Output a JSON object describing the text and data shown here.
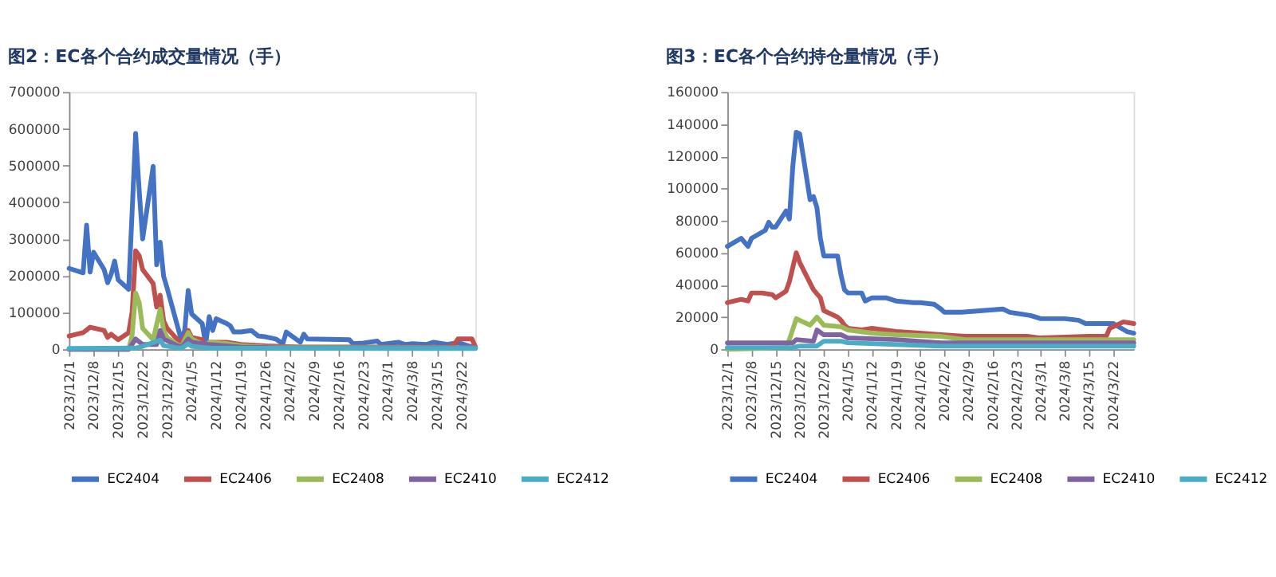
{
  "chart_data": [
    {
      "type": "line",
      "title": "图2：EC各个合约成交量情况（手）",
      "legend": "bottom",
      "grid": false,
      "line_style": "solid",
      "marker": "none",
      "xlim": [
        "2023-12-01",
        "2024-03-26"
      ],
      "xticks": [
        {
          "value": "2023-12-01",
          "label": "2023/12/1"
        },
        {
          "value": "2023-12-08",
          "label": "2023/12/8"
        },
        {
          "value": "2023-12-15",
          "label": "2023/12/15"
        },
        {
          "value": "2023-12-22",
          "label": "2023/12/22"
        },
        {
          "value": "2023-12-29",
          "label": "2023/12/29"
        },
        {
          "value": "2024-01-05",
          "label": "2024/1/5"
        },
        {
          "value": "2024-01-12",
          "label": "2024/1/12"
        },
        {
          "value": "2024-01-19",
          "label": "2024/1/19"
        },
        {
          "value": "2024-01-26",
          "label": "2024/1/26"
        },
        {
          "value": "2024-02-02",
          "label": "2024/2/2"
        },
        {
          "value": "2024-02-09",
          "label": "2024/2/9"
        },
        {
          "value": "2024-02-16",
          "label": "2024/2/16"
        },
        {
          "value": "2024-02-23",
          "label": "2024/2/23"
        },
        {
          "value": "2024-03-01",
          "label": "2024/3/1"
        },
        {
          "value": "2024-03-08",
          "label": "2024/3/8"
        },
        {
          "value": "2024-03-15",
          "label": "2024/3/15"
        },
        {
          "value": "2024-03-22",
          "label": "2024/3/22"
        }
      ],
      "ylim": [
        0,
        700000
      ],
      "yticks": [
        0,
        100000,
        200000,
        300000,
        400000,
        500000,
        600000,
        700000
      ],
      "series": [
        {
          "name": "EC2404",
          "color": "#4472c4",
          "x": [
            "2023-12-01",
            "2023-12-05",
            "2023-12-06",
            "2023-12-07",
            "2023-12-08",
            "2023-12-11",
            "2023-12-12",
            "2023-12-13",
            "2023-12-14",
            "2023-12-15",
            "2023-12-18",
            "2023-12-20",
            "2023-12-21",
            "2023-12-22",
            "2023-12-25",
            "2023-12-26",
            "2023-12-27",
            "2023-12-28",
            "2023-12-29",
            "2024-01-02",
            "2024-01-03",
            "2024-01-04",
            "2024-01-05",
            "2024-01-08",
            "2024-01-09",
            "2024-01-10",
            "2024-01-11",
            "2024-01-12",
            "2024-01-15",
            "2024-01-16",
            "2024-01-17",
            "2024-01-19",
            "2024-01-22",
            "2024-01-24",
            "2024-01-26",
            "2024-01-29",
            "2024-01-31",
            "2024-02-01",
            "2024-02-05",
            "2024-02-06",
            "2024-02-07",
            "2024-02-19",
            "2024-02-20",
            "2024-02-23",
            "2024-02-27",
            "2024-02-28",
            "2024-03-04",
            "2024-03-06",
            "2024-03-08",
            "2024-03-12",
            "2024-03-14",
            "2024-03-18",
            "2024-03-21",
            "2024-03-25"
          ],
          "values": [
            220000,
            208000,
            338000,
            210000,
            264000,
            217000,
            181000,
            204000,
            240000,
            189000,
            163000,
            587000,
            434000,
            300000,
            498000,
            230000,
            291000,
            198000,
            166000,
            26000,
            51000,
            160000,
            96000,
            70000,
            13000,
            89000,
            51000,
            83000,
            70000,
            64000,
            47000,
            47000,
            51000,
            36000,
            34000,
            28000,
            15000,
            47000,
            19000,
            41000,
            28000,
            26000,
            15000,
            17000,
            22000,
            13000,
            19000,
            13000,
            15000,
            13000,
            19000,
            13000,
            18000,
            6000
          ]
        },
        {
          "name": "EC2406",
          "color": "#c0504d",
          "x": [
            "2023-12-01",
            "2023-12-05",
            "2023-12-07",
            "2023-12-11",
            "2023-12-12",
            "2023-12-13",
            "2023-12-15",
            "2023-12-18",
            "2023-12-19",
            "2023-12-20",
            "2023-12-21",
            "2023-12-22",
            "2023-12-25",
            "2023-12-26",
            "2023-12-27",
            "2023-12-28",
            "2023-12-29",
            "2024-01-02",
            "2024-01-04",
            "2024-01-05",
            "2024-01-08",
            "2024-01-09",
            "2024-01-10",
            "2024-01-15",
            "2024-01-19",
            "2024-01-26",
            "2024-02-05",
            "2024-02-23",
            "2024-03-18",
            "2024-03-20",
            "2024-03-21",
            "2024-03-25",
            "2024-03-26"
          ],
          "values": [
            36000,
            45000,
            60000,
            51000,
            32000,
            41000,
            26000,
            45000,
            102000,
            268000,
            255000,
            217000,
            179000,
            115000,
            147000,
            77000,
            57000,
            15000,
            51000,
            32000,
            26000,
            6000,
            19000,
            19000,
            13000,
            9000,
            6000,
            6000,
            6000,
            13000,
            28000,
            28000,
            6000
          ]
        },
        {
          "name": "EC2408",
          "color": "#9bbb59",
          "x": [
            "2023-12-01",
            "2023-12-18",
            "2023-12-19",
            "2023-12-20",
            "2023-12-21",
            "2023-12-22",
            "2023-12-25",
            "2023-12-27",
            "2023-12-28",
            "2023-12-29",
            "2024-01-02",
            "2024-01-04",
            "2024-01-05",
            "2024-01-09",
            "2024-01-10",
            "2024-01-15",
            "2024-01-19",
            "2024-01-26",
            "2024-03-26"
          ],
          "values": [
            0,
            0,
            38000,
            153000,
            128000,
            57000,
            26000,
            109000,
            51000,
            32000,
            6000,
            45000,
            28000,
            10000,
            19000,
            15000,
            10000,
            6000,
            4000
          ]
        },
        {
          "name": "EC2410",
          "color": "#8064a2",
          "x": [
            "2023-12-01",
            "2023-12-18",
            "2023-12-20",
            "2023-12-22",
            "2023-12-26",
            "2023-12-27",
            "2023-12-28",
            "2024-01-02",
            "2024-01-04",
            "2024-01-05",
            "2024-01-10",
            "2024-01-19",
            "2024-02-01",
            "2024-03-26"
          ],
          "values": [
            0,
            0,
            28000,
            13000,
            13000,
            51000,
            28000,
            5000,
            28000,
            19000,
            13000,
            6000,
            4000,
            4000
          ]
        },
        {
          "name": "EC2412",
          "color": "#4bacc6",
          "x": [
            "2023-12-01",
            "2023-12-20",
            "2023-12-22",
            "2023-12-27",
            "2023-12-28",
            "2024-01-02",
            "2024-01-04",
            "2024-01-05",
            "2024-01-10",
            "2024-03-26"
          ],
          "values": [
            2000,
            3000,
            8000,
            25000,
            10000,
            2000,
            15000,
            8000,
            3000,
            2000
          ]
        }
      ]
    },
    {
      "type": "line",
      "title": "图3：EC各个合约持仓量情况（手）",
      "legend": "bottom",
      "grid": false,
      "line_style": "solid",
      "marker": "none",
      "xlim": [
        "2023-12-01",
        "2024-03-28"
      ],
      "xticks": [
        {
          "value": "2023-12-01",
          "label": "2023/12/1"
        },
        {
          "value": "2023-12-08",
          "label": "2023/12/8"
        },
        {
          "value": "2023-12-15",
          "label": "2023/12/15"
        },
        {
          "value": "2023-12-22",
          "label": "2023/12/22"
        },
        {
          "value": "2023-12-29",
          "label": "2023/12/29"
        },
        {
          "value": "2024-01-05",
          "label": "2024/1/5"
        },
        {
          "value": "2024-01-12",
          "label": "2024/1/12"
        },
        {
          "value": "2024-01-19",
          "label": "2024/1/19"
        },
        {
          "value": "2024-01-26",
          "label": "2024/1/26"
        },
        {
          "value": "2024-02-02",
          "label": "2024/2/2"
        },
        {
          "value": "2024-02-09",
          "label": "2024/2/9"
        },
        {
          "value": "2024-02-16",
          "label": "2024/2/16"
        },
        {
          "value": "2024-02-23",
          "label": "2024/2/23"
        },
        {
          "value": "2024-03-01",
          "label": "2024/3/1"
        },
        {
          "value": "2024-03-08",
          "label": "2024/3/8"
        },
        {
          "value": "2024-03-15",
          "label": "2024/3/15"
        },
        {
          "value": "2024-03-22",
          "label": "2024/3/22"
        }
      ],
      "ylim": [
        0,
        160000
      ],
      "yticks": [
        0,
        20000,
        40000,
        60000,
        80000,
        100000,
        120000,
        140000,
        160000
      ],
      "series": [
        {
          "name": "EC2404",
          "color": "#4472c4",
          "x": [
            "2023-12-01",
            "2023-12-05",
            "2023-12-07",
            "2023-12-08",
            "2023-12-12",
            "2023-12-13",
            "2023-12-14",
            "2023-12-15",
            "2023-12-18",
            "2023-12-19",
            "2023-12-20",
            "2023-12-21",
            "2023-12-22",
            "2023-12-25",
            "2023-12-26",
            "2023-12-27",
            "2023-12-28",
            "2023-12-29",
            "2024-01-02",
            "2024-01-03",
            "2024-01-04",
            "2024-01-05",
            "2024-01-09",
            "2024-01-10",
            "2024-01-12",
            "2024-01-16",
            "2024-01-19",
            "2024-01-24",
            "2024-01-26",
            "2024-01-30",
            "2024-02-01",
            "2024-02-02",
            "2024-02-07",
            "2024-02-19",
            "2024-02-21",
            "2024-02-27",
            "2024-03-01",
            "2024-03-08",
            "2024-03-12",
            "2024-03-14",
            "2024-03-19",
            "2024-03-22",
            "2024-03-26",
            "2024-03-28"
          ],
          "values": [
            64000,
            69000,
            64000,
            69000,
            74000,
            79000,
            76000,
            76000,
            86000,
            81000,
            114000,
            135000,
            134000,
            93000,
            95000,
            88000,
            69000,
            58000,
            58000,
            46000,
            37000,
            35000,
            35000,
            30000,
            32000,
            32000,
            30000,
            29000,
            29000,
            28000,
            25000,
            23000,
            23000,
            25000,
            23000,
            21000,
            19000,
            19000,
            18000,
            16000,
            16000,
            16000,
            11000,
            10000
          ]
        },
        {
          "name": "EC2406",
          "color": "#c0504d",
          "x": [
            "2023-12-01",
            "2023-12-05",
            "2023-12-07",
            "2023-12-08",
            "2023-12-11",
            "2023-12-14",
            "2023-12-15",
            "2023-12-18",
            "2023-12-19",
            "2023-12-21",
            "2023-12-22",
            "2023-12-26",
            "2023-12-28",
            "2023-12-29",
            "2024-01-02",
            "2024-01-03",
            "2024-01-04",
            "2024-01-05",
            "2024-01-09",
            "2024-01-12",
            "2024-01-19",
            "2024-01-26",
            "2024-02-01",
            "2024-02-08",
            "2024-02-26",
            "2024-03-01",
            "2024-03-15",
            "2024-03-20",
            "2024-03-21",
            "2024-03-25",
            "2024-03-28"
          ],
          "values": [
            29000,
            31000,
            30000,
            35000,
            35000,
            34000,
            32000,
            36000,
            42000,
            60000,
            54000,
            37000,
            32000,
            24000,
            20000,
            18000,
            15000,
            13000,
            12000,
            13000,
            11000,
            10000,
            9000,
            8000,
            8000,
            7000,
            8000,
            8000,
            13000,
            17000,
            16000
          ]
        },
        {
          "name": "EC2408",
          "color": "#9bbb59",
          "x": [
            "2023-12-01",
            "2023-12-18",
            "2023-12-19",
            "2023-12-21",
            "2023-12-25",
            "2023-12-27",
            "2023-12-29",
            "2024-01-03",
            "2024-01-05",
            "2024-01-12",
            "2024-01-19",
            "2024-02-01",
            "2024-02-08",
            "2024-03-28"
          ],
          "values": [
            0,
            1000,
            6000,
            19000,
            15000,
            20000,
            15000,
            14000,
            12000,
            10000,
            9000,
            8000,
            6000,
            6000
          ]
        },
        {
          "name": "EC2410",
          "color": "#8064a2",
          "x": [
            "2023-12-01",
            "2023-12-20",
            "2023-12-21",
            "2023-12-26",
            "2023-12-27",
            "2023-12-29",
            "2024-01-03",
            "2024-01-05",
            "2024-01-19",
            "2024-02-01",
            "2024-03-28"
          ],
          "values": [
            4000,
            4000,
            6000,
            5000,
            12000,
            9000,
            9000,
            7000,
            6000,
            4000,
            4000
          ]
        },
        {
          "name": "EC2412",
          "color": "#4bacc6",
          "x": [
            "2023-12-01",
            "2023-12-20",
            "2023-12-22",
            "2023-12-27",
            "2023-12-29",
            "2024-01-03",
            "2024-01-05",
            "2024-02-01",
            "2024-03-28"
          ],
          "values": [
            1000,
            1000,
            2000,
            2000,
            5000,
            5000,
            4000,
            2000,
            2000
          ]
        }
      ]
    }
  ]
}
